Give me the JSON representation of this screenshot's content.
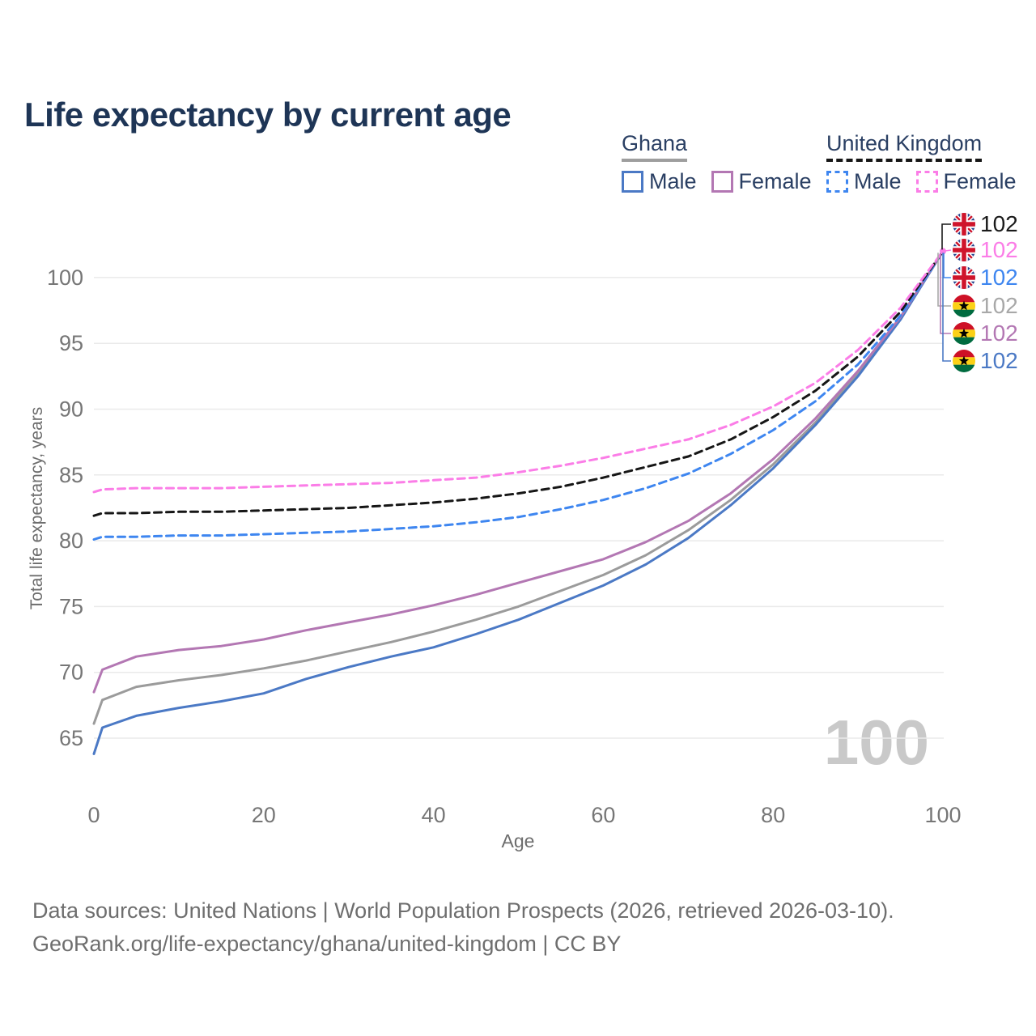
{
  "title": "Life expectancy by current age",
  "legend": {
    "groups": [
      {
        "country": "Ghana",
        "line_style": "solid",
        "underline_color": "#9e9e9e",
        "items": [
          {
            "label": "Male",
            "color": "#4b79c5"
          },
          {
            "label": "Female",
            "color": "#b377b3"
          }
        ]
      },
      {
        "country": "United Kingdom",
        "line_style": "dashed",
        "underline_color": "#161616",
        "items": [
          {
            "label": "Male",
            "color": "#3e86f0"
          },
          {
            "label": "Female",
            "color": "#fb7de7"
          }
        ]
      }
    ]
  },
  "chart_data": {
    "type": "line",
    "title": "Life expectancy by current age",
    "xlabel": "Age",
    "ylabel": "Total life expectancy, years",
    "x_ticks": [
      0,
      20,
      40,
      60,
      80,
      100
    ],
    "y_ticks": [
      65,
      70,
      75,
      80,
      85,
      90,
      95,
      100
    ],
    "xlim": [
      0,
      100
    ],
    "ylim": [
      63,
      103
    ],
    "grid": "horizontal-only",
    "legend_position": "top-right",
    "watermark": "100",
    "x": [
      0,
      1,
      5,
      10,
      15,
      20,
      25,
      30,
      35,
      40,
      45,
      50,
      55,
      60,
      65,
      70,
      75,
      80,
      85,
      90,
      95,
      100
    ],
    "series": [
      {
        "id": "ghana-all",
        "name": "Ghana (both sexes)",
        "country": "Ghana",
        "sex": "all",
        "color": "#9b9b9b",
        "dash": false,
        "values": [
          66.1,
          67.9,
          68.9,
          69.4,
          69.8,
          70.3,
          70.9,
          71.6,
          72.3,
          73.1,
          74.0,
          75.0,
          76.2,
          77.4,
          78.9,
          80.8,
          83.1,
          85.8,
          89.0,
          92.7,
          96.9,
          102
        ]
      },
      {
        "id": "ghana-male",
        "name": "Ghana Male",
        "country": "Ghana",
        "sex": "male",
        "color": "#4b79c5",
        "dash": false,
        "values": [
          63.8,
          65.8,
          66.7,
          67.3,
          67.8,
          68.4,
          69.5,
          70.4,
          71.2,
          71.9,
          72.9,
          74.0,
          75.3,
          76.6,
          78.2,
          80.2,
          82.7,
          85.5,
          88.8,
          92.5,
          96.8,
          102
        ]
      },
      {
        "id": "ghana-female",
        "name": "Ghana Female",
        "country": "Ghana",
        "sex": "female",
        "color": "#b377b3",
        "dash": false,
        "values": [
          68.5,
          70.2,
          71.2,
          71.7,
          72.0,
          72.5,
          73.2,
          73.8,
          74.4,
          75.1,
          75.9,
          76.8,
          77.7,
          78.6,
          79.9,
          81.5,
          83.6,
          86.2,
          89.3,
          92.9,
          97.0,
          102
        ]
      },
      {
        "id": "uk-male",
        "name": "United Kingdom Male",
        "country": "United Kingdom",
        "sex": "male",
        "color": "#3e86f0",
        "dash": true,
        "values": [
          80.1,
          80.3,
          80.3,
          80.4,
          80.4,
          80.5,
          80.6,
          80.7,
          80.9,
          81.1,
          81.4,
          81.8,
          82.4,
          83.1,
          84.0,
          85.1,
          86.6,
          88.4,
          90.6,
          93.4,
          97.1,
          102
        ]
      },
      {
        "id": "uk-all",
        "name": "United Kingdom (both sexes)",
        "country": "United Kingdom",
        "sex": "all",
        "color": "#161616",
        "dash": true,
        "values": [
          81.9,
          82.1,
          82.1,
          82.2,
          82.2,
          82.3,
          82.4,
          82.5,
          82.7,
          82.9,
          83.2,
          83.6,
          84.1,
          84.8,
          85.6,
          86.4,
          87.7,
          89.4,
          91.4,
          94.0,
          97.4,
          102
        ]
      },
      {
        "id": "uk-female",
        "name": "United Kingdom Female",
        "country": "United Kingdom",
        "sex": "female",
        "color": "#fb7de7",
        "dash": true,
        "values": [
          83.7,
          83.9,
          84.0,
          84.0,
          84.0,
          84.1,
          84.2,
          84.3,
          84.4,
          84.6,
          84.8,
          85.2,
          85.7,
          86.3,
          87.0,
          87.7,
          88.8,
          90.2,
          92.0,
          94.5,
          97.7,
          102
        ]
      }
    ],
    "end_labels": [
      {
        "series": "uk-all",
        "flag": "uk",
        "value": "102",
        "color": "#1a1a1a"
      },
      {
        "series": "uk-female",
        "flag": "uk",
        "value": "102",
        "color": "#fb7de7"
      },
      {
        "series": "uk-male",
        "flag": "uk",
        "value": "102",
        "color": "#3e86f0"
      },
      {
        "series": "ghana-all",
        "flag": "ghana",
        "value": "102",
        "color": "#a8a8a8"
      },
      {
        "series": "ghana-female",
        "flag": "ghana",
        "value": "102",
        "color": "#b377b3"
      },
      {
        "series": "ghana-male",
        "flag": "ghana",
        "value": "102",
        "color": "#4b79c5"
      }
    ]
  },
  "footer": {
    "line1": "Data sources: United Nations | World Population Prospects (2026, retrieved 2026-03-10).",
    "line2": "GeoRank.org/life-expectancy/ghana/united-kingdom | CC BY"
  }
}
